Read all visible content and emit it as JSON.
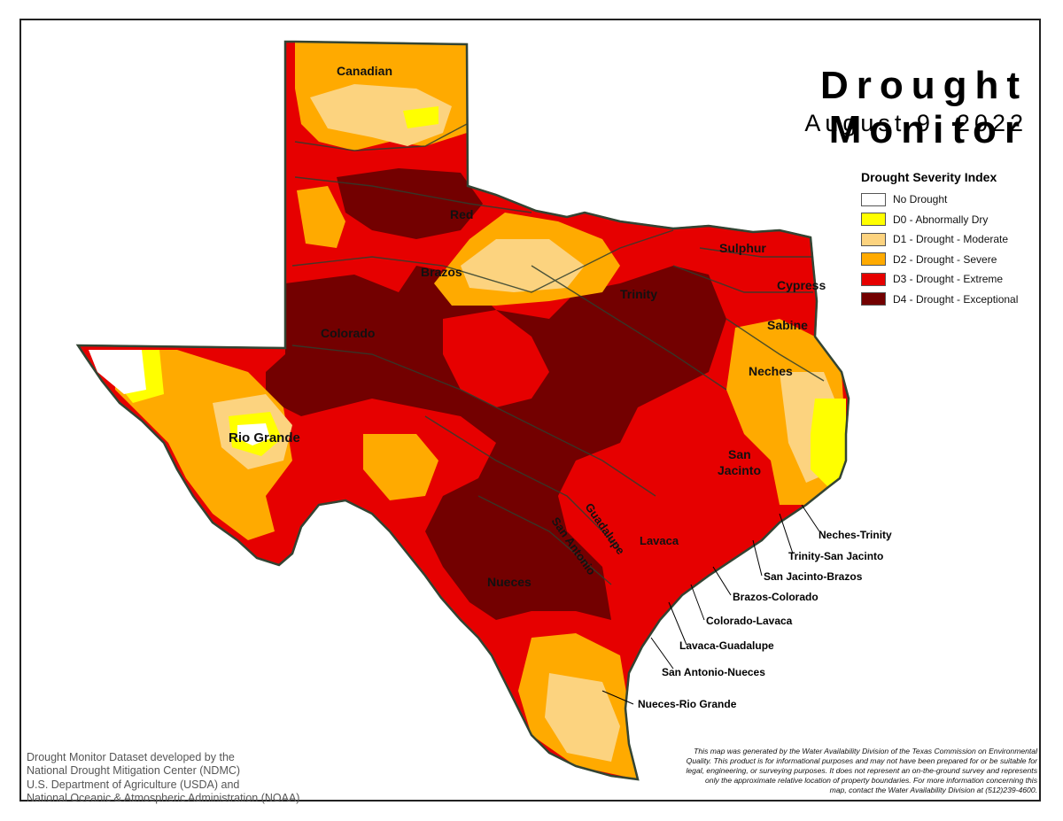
{
  "header": {
    "title": "Drought Monitor",
    "date": "August 9, 2022"
  },
  "legend": {
    "title": "Drought Severity Index",
    "items": [
      {
        "label": "No Drought",
        "color": "#ffffff"
      },
      {
        "label": "D0 - Abnormally Dry",
        "color": "#ffff00"
      },
      {
        "label": "D1 - Drought - Moderate",
        "color": "#fcd37f"
      },
      {
        "label": "D2 - Drought - Severe",
        "color": "#ffaa00"
      },
      {
        "label": "D3 - Drought - Extreme",
        "color": "#e60000"
      },
      {
        "label": "D4 - Drought - Exceptional",
        "color": "#730000"
      }
    ]
  },
  "basins": {
    "canadian": "Canadian",
    "red": "Red",
    "brazos": "Brazos",
    "colorado": "Colorado",
    "rio_grande": "Rio Grande",
    "sulphur": "Sulphur",
    "cypress": "Cypress",
    "trinity": "Trinity",
    "sabine": "Sabine",
    "neches": "Neches",
    "san_jacinto_1": "San",
    "san_jacinto_2": "Jacinto",
    "guadalupe": "Guadalupe",
    "san_antonio": "San Antonio",
    "lavaca": "Lavaca",
    "nueces": "Nueces"
  },
  "coastal_basins": {
    "neches_trinity": "Neches-Trinity",
    "trinity_san_jacinto": "Trinity-San Jacinto",
    "san_jacinto_brazos": "San Jacinto-Brazos",
    "brazos_colorado": "Brazos-Colorado",
    "colorado_lavaca": "Colorado-Lavaca",
    "lavaca_guadalupe": "Lavaca-Guadalupe",
    "san_antonio_nueces": "San Antonio-Nueces",
    "nueces_rio_grande": "Nueces-Rio Grande"
  },
  "credit": [
    "Drought Monitor Dataset developed by the",
    "National Drought Mitigation Center (NDMC)",
    "U.S. Department of Agriculture (USDA) and",
    "National Oceanic & Atmospheric Administration (NOAA)"
  ],
  "disclaimer": [
    "This map was generated by the Water Availability Division of the Texas Commission on Environmental",
    "Quality. This product is for informational purposes and may not have been prepared for or be suitable for",
    "legal, engineering, or surveying purposes. It does not represent an on-the-ground survey and represents",
    "only the approximate relative location of property boundaries. For more information concerning this",
    "map, contact the Water Availability Division at (512)239-4600."
  ]
}
